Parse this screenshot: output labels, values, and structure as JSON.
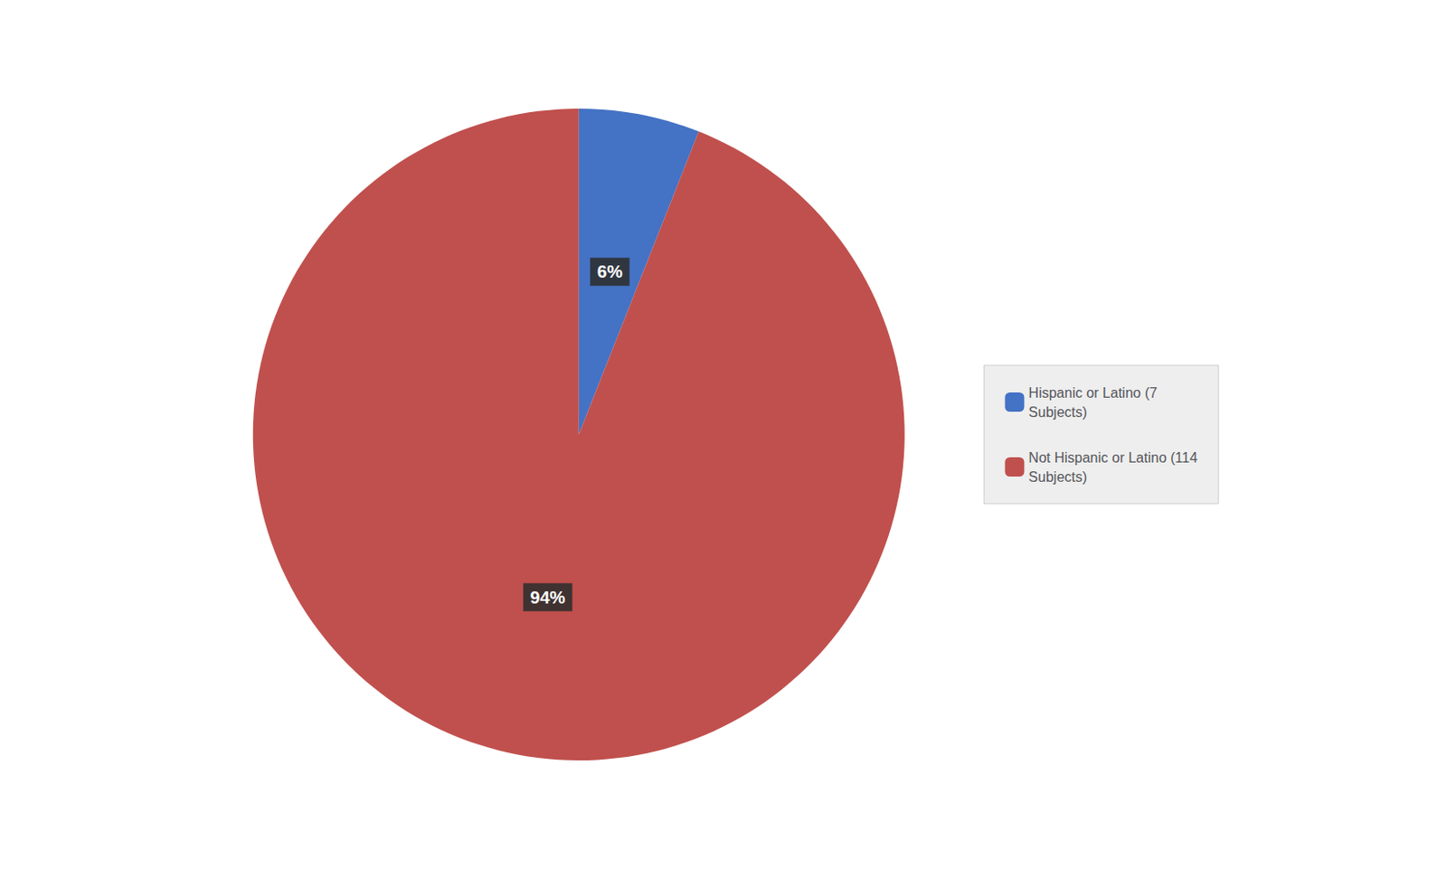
{
  "chart_data": {
    "type": "pie",
    "categories": [
      "Hispanic or Latino (7\nSubjects)",
      "Not Hispanic or Latino (114\nSubjects)"
    ],
    "values": [
      6,
      94
    ],
    "value_labels": [
      "6%",
      "94%"
    ],
    "colors": [
      "#4472C4",
      "#C0504D"
    ],
    "data_labels": true,
    "legend": "right"
  }
}
